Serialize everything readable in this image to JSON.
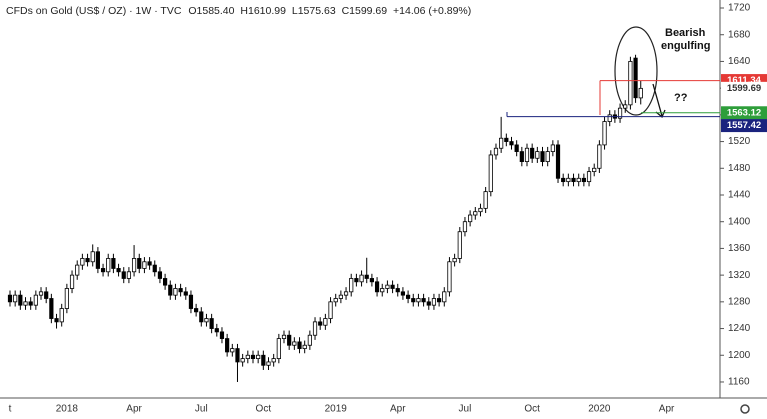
{
  "chart_data": {
    "type": "candlestick",
    "header": {
      "title": "CFDs on Gold (US$ / OZ) · 1W · TVC",
      "open": "O1585.40",
      "high": "H1610.99",
      "low": "L1575.63",
      "close": "C1599.69",
      "change": "+14.06 (+0.89%)"
    },
    "annotations": [
      "Bearish",
      "engulfing",
      "??"
    ],
    "up_color": "#ffffff",
    "down_color": "#000000",
    "categories": [
      "t",
      null,
      null,
      null,
      null,
      null,
      null,
      null,
      null,
      null,
      null,
      "2018",
      null,
      null,
      null,
      null,
      null,
      null,
      null,
      null,
      null,
      null,
      null,
      null,
      "Apr",
      null,
      null,
      null,
      null,
      null,
      null,
      null,
      null,
      null,
      null,
      null,
      null,
      "Jul",
      null,
      null,
      null,
      null,
      null,
      null,
      null,
      null,
      null,
      null,
      null,
      "Oct",
      null,
      null,
      null,
      null,
      null,
      null,
      null,
      null,
      null,
      null,
      null,
      null,
      null,
      "2019",
      null,
      null,
      null,
      null,
      null,
      null,
      null,
      null,
      null,
      null,
      null,
      "Apr",
      null,
      null,
      null,
      null,
      null,
      null,
      null,
      null,
      null,
      null,
      null,
      null,
      "Jul",
      null,
      null,
      null,
      null,
      null,
      null,
      null,
      null,
      null,
      null,
      null,
      null,
      "Oct",
      null,
      null,
      null,
      null,
      null,
      null,
      null,
      null,
      null,
      null,
      null,
      null,
      "2020",
      null,
      null,
      null,
      null,
      null,
      null,
      null,
      null,
      null,
      null,
      null,
      null,
      "Apr"
    ],
    "open": [
      1290,
      1280,
      1290,
      1275,
      1280,
      1275,
      1290,
      1295,
      1285,
      1255,
      1250,
      1270,
      1300,
      1320,
      1335,
      1345,
      1340,
      1355,
      1330,
      1325,
      1345,
      1330,
      1325,
      1315,
      1325,
      1345,
      1330,
      1340,
      1335,
      1325,
      1315,
      1305,
      1290,
      1300,
      1295,
      1290,
      1270,
      1265,
      1250,
      1255,
      1240,
      1235,
      1225,
      1205,
      1210,
      1190,
      1195,
      1200,
      1195,
      1200,
      1185,
      1190,
      1195,
      1225,
      1230,
      1215,
      1220,
      1210,
      1215,
      1230,
      1250,
      1245,
      1255,
      1280,
      1285,
      1290,
      1295,
      1315,
      1310,
      1320,
      1315,
      1310,
      1295,
      1300,
      1305,
      1300,
      1295,
      1290,
      1285,
      1280,
      1285,
      1280,
      1275,
      1285,
      1280,
      1295,
      1340,
      1345,
      1385,
      1400,
      1410,
      1415,
      1420,
      1445,
      1500,
      1510,
      1525,
      1520,
      1515,
      1505,
      1490,
      1510,
      1495,
      1505,
      1490,
      1505,
      1515,
      1465,
      1460,
      1465,
      1460,
      1465,
      1460,
      1475,
      1480,
      1515,
      1550,
      1560,
      1555,
      1570,
      1575,
      1645,
      1585.4,
      null,
      null,
      null,
      null,
      null
    ],
    "high": [
      1297,
      1297,
      1297,
      1287,
      1287,
      1297,
      1302,
      1302,
      1292,
      1262,
      1277,
      1307,
      1327,
      1342,
      1352,
      1352,
      1366,
      1362,
      1337,
      1352,
      1352,
      1337,
      1332,
      1332,
      1365,
      1352,
      1347,
      1347,
      1342,
      1332,
      1322,
      1312,
      1307,
      1307,
      1302,
      1297,
      1277,
      1272,
      1262,
      1262,
      1247,
      1242,
      1232,
      1217,
      1217,
      1202,
      1207,
      1207,
      1207,
      1207,
      1197,
      1202,
      1232,
      1237,
      1237,
      1227,
      1227,
      1222,
      1237,
      1257,
      1257,
      1262,
      1287,
      1292,
      1297,
      1302,
      1322,
      1322,
      1327,
      1346,
      1322,
      1317,
      1307,
      1312,
      1312,
      1307,
      1302,
      1297,
      1292,
      1292,
      1292,
      1287,
      1292,
      1292,
      1302,
      1347,
      1352,
      1392,
      1407,
      1417,
      1422,
      1427,
      1452,
      1507,
      1517,
      1557,
      1532,
      1527,
      1522,
      1512,
      1517,
      1517,
      1512,
      1512,
      1512,
      1522,
      1522,
      1472,
      1472,
      1472,
      1472,
      1472,
      1482,
      1487,
      1522,
      1557,
      1567,
      1567,
      1577,
      1582,
      1647,
      1650,
      1610.99,
      null,
      null,
      null,
      null,
      null
    ],
    "low": [
      1273,
      1273,
      1268,
      1268,
      1268,
      1268,
      1283,
      1278,
      1248,
      1240,
      1243,
      1263,
      1293,
      1313,
      1328,
      1333,
      1333,
      1323,
      1318,
      1318,
      1323,
      1318,
      1308,
      1308,
      1318,
      1323,
      1323,
      1328,
      1318,
      1308,
      1298,
      1283,
      1283,
      1288,
      1283,
      1263,
      1258,
      1243,
      1243,
      1233,
      1228,
      1218,
      1198,
      1198,
      1160,
      1183,
      1188,
      1188,
      1188,
      1178,
      1178,
      1183,
      1188,
      1218,
      1208,
      1208,
      1203,
      1203,
      1208,
      1223,
      1238,
      1238,
      1248,
      1273,
      1278,
      1283,
      1288,
      1303,
      1303,
      1308,
      1303,
      1288,
      1288,
      1293,
      1293,
      1288,
      1283,
      1278,
      1273,
      1273,
      1273,
      1268,
      1268,
      1273,
      1273,
      1288,
      1333,
      1338,
      1378,
      1393,
      1403,
      1408,
      1413,
      1438,
      1493,
      1503,
      1513,
      1508,
      1498,
      1483,
      1483,
      1488,
      1488,
      1483,
      1483,
      1498,
      1458,
      1453,
      1453,
      1453,
      1453,
      1453,
      1453,
      1468,
      1473,
      1508,
      1543,
      1548,
      1548,
      1563,
      1568,
      1578,
      1575.63,
      null,
      null,
      null,
      null,
      null
    ],
    "close": [
      1280,
      1290,
      1275,
      1280,
      1275,
      1290,
      1295,
      1285,
      1255,
      1250,
      1270,
      1300,
      1320,
      1335,
      1345,
      1340,
      1355,
      1330,
      1325,
      1345,
      1330,
      1325,
      1315,
      1325,
      1345,
      1330,
      1340,
      1335,
      1325,
      1315,
      1305,
      1290,
      1300,
      1295,
      1290,
      1270,
      1265,
      1250,
      1255,
      1240,
      1235,
      1225,
      1205,
      1210,
      1190,
      1195,
      1200,
      1195,
      1200,
      1185,
      1190,
      1195,
      1225,
      1230,
      1215,
      1220,
      1210,
      1215,
      1230,
      1250,
      1245,
      1255,
      1280,
      1285,
      1290,
      1295,
      1315,
      1310,
      1320,
      1315,
      1310,
      1295,
      1300,
      1305,
      1300,
      1295,
      1290,
      1285,
      1280,
      1285,
      1280,
      1275,
      1285,
      1280,
      1295,
      1340,
      1345,
      1385,
      1400,
      1410,
      1415,
      1420,
      1445,
      1500,
      1510,
      1525,
      1520,
      1515,
      1505,
      1490,
      1510,
      1495,
      1505,
      1490,
      1505,
      1515,
      1465,
      1460,
      1465,
      1460,
      1465,
      1460,
      1475,
      1480,
      1515,
      1550,
      1560,
      1555,
      1570,
      1575,
      1640,
      1585.63,
      1599.69,
      null,
      null,
      null,
      null,
      null
    ],
    "hlines": [
      {
        "value": 1611.34,
        "color": "#e53935"
      },
      {
        "value": 1563.12,
        "color": "#2e9e3a"
      },
      {
        "value": 1557.42,
        "color": "#1a237e"
      }
    ],
    "ylim": [
      1136,
      1732
    ],
    "yticks": [
      1160,
      1200,
      1240,
      1280,
      1320,
      1360,
      1400,
      1440,
      1480,
      1520,
      1560,
      1600,
      1640,
      1680,
      1720
    ]
  }
}
